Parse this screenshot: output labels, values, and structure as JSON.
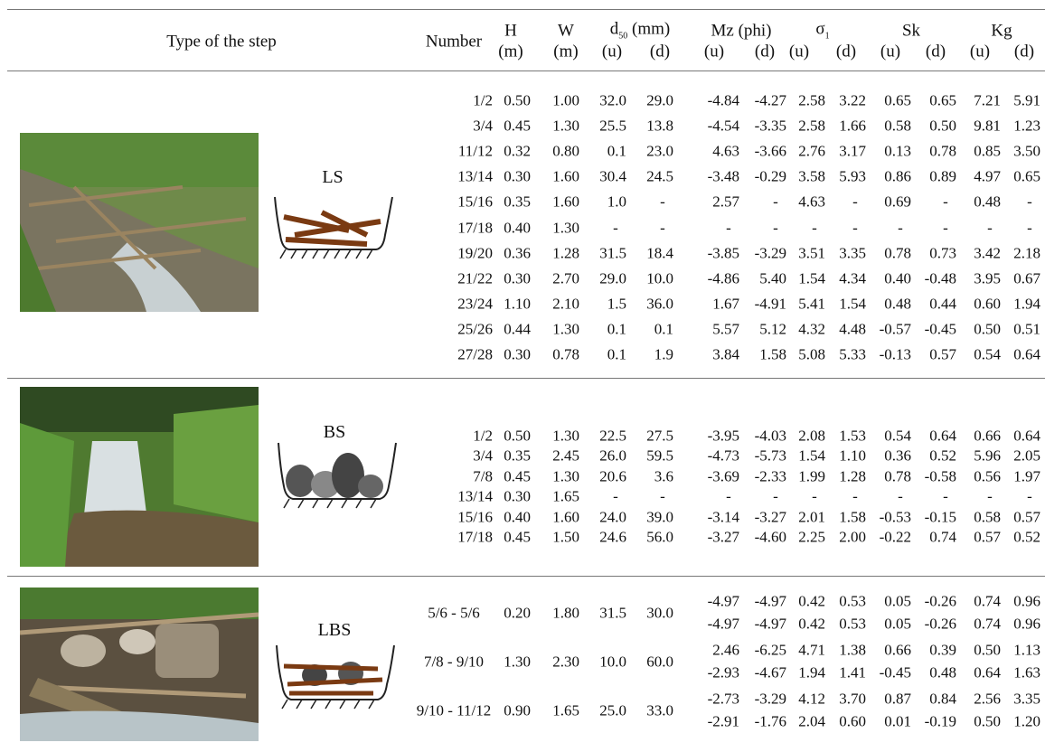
{
  "table": {
    "header": {
      "type": "Type of the step",
      "number": "Number",
      "columns": [
        {
          "name": "H",
          "unit": "(m)"
        },
        {
          "name": "W",
          "unit": "(m)"
        }
      ],
      "groups": [
        {
          "name": "d",
          "sub": "50",
          "unit": " (mm)",
          "u": "(u)",
          "d": "(d)"
        },
        {
          "name": "Mz (phi)",
          "u": "(u)",
          "d": "(d)"
        },
        {
          "name": "σ",
          "sub": "1",
          "u": "(u)",
          "d": "(d)"
        },
        {
          "name": "Sk",
          "u": "(u)",
          "d": "(d)"
        },
        {
          "name": "Kg",
          "u": "(u)",
          "d": "(d)"
        }
      ]
    },
    "groups": [
      {
        "label": "LS",
        "rows": [
          [
            "1/2",
            "0.50",
            "1.00",
            "32.0",
            "29.0",
            "-4.84",
            "-4.27",
            "2.58",
            "3.22",
            "0.65",
            "0.65",
            "7.21",
            "5.91"
          ],
          [
            "3/4",
            "0.45",
            "1.30",
            "25.5",
            "13.8",
            "-4.54",
            "-3.35",
            "2.58",
            "1.66",
            "0.58",
            "0.50",
            "9.81",
            "1.23"
          ],
          [
            "11/12",
            "0.32",
            "0.80",
            "0.1",
            "23.0",
            "4.63",
            "-3.66",
            "2.76",
            "3.17",
            "0.13",
            "0.78",
            "0.85",
            "3.50"
          ],
          [
            "13/14",
            "0.30",
            "1.60",
            "30.4",
            "24.5",
            "-3.48",
            "-0.29",
            "3.58",
            "5.93",
            "0.86",
            "0.89",
            "4.97",
            "0.65"
          ],
          [
            "15/16",
            "0.35",
            "1.60",
            "1.0",
            "-",
            "2.57",
            "-",
            "4.63",
            "-",
            "0.69",
            "-",
            "0.48",
            "-"
          ],
          [
            "17/18",
            "0.40",
            "1.30",
            "-",
            "-",
            "-",
            "-",
            "-",
            "-",
            "-",
            "-",
            "-",
            "-"
          ],
          [
            "19/20",
            "0.36",
            "1.28",
            "31.5",
            "18.4",
            "-3.85",
            "-3.29",
            "3.51",
            "3.35",
            "0.78",
            "0.73",
            "3.42",
            "2.18"
          ],
          [
            "21/22",
            "0.30",
            "2.70",
            "29.0",
            "10.0",
            "-4.86",
            "5.40",
            "1.54",
            "4.34",
            "0.40",
            "-0.48",
            "3.95",
            "0.67"
          ],
          [
            "23/24",
            "1.10",
            "2.10",
            "1.5",
            "36.0",
            "1.67",
            "-4.91",
            "5.41",
            "1.54",
            "0.48",
            "0.44",
            "0.60",
            "1.94"
          ],
          [
            "25/26",
            "0.44",
            "1.30",
            "0.1",
            "0.1",
            "5.57",
            "5.12",
            "4.32",
            "4.48",
            "-0.57",
            "-0.45",
            "0.50",
            "0.51"
          ],
          [
            "27/28",
            "0.30",
            "0.78",
            "0.1",
            "1.9",
            "3.84",
            "1.58",
            "5.08",
            "5.33",
            "-0.13",
            "0.57",
            "0.54",
            "0.64"
          ]
        ]
      },
      {
        "label": "BS",
        "rows": [
          [
            "1/2",
            "0.50",
            "1.30",
            "22.5",
            "27.5",
            "-3.95",
            "-4.03",
            "2.08",
            "1.53",
            "0.54",
            "0.64",
            "0.66",
            "0.64"
          ],
          [
            "3/4",
            "0.35",
            "2.45",
            "26.0",
            "59.5",
            "-4.73",
            "-5.73",
            "1.54",
            "1.10",
            "0.36",
            "0.52",
            "5.96",
            "2.05"
          ],
          [
            "7/8",
            "0.45",
            "1.30",
            "20.6",
            "3.6",
            "-3.69",
            "-2.33",
            "1.99",
            "1.28",
            "0.78",
            "-0.58",
            "0.56",
            "1.97"
          ],
          [
            "13/14",
            "0.30",
            "1.65",
            "-",
            "-",
            "-",
            "-",
            "-",
            "-",
            "-",
            "-",
            "-",
            "-"
          ],
          [
            "15/16",
            "0.40",
            "1.60",
            "24.0",
            "39.0",
            "-3.14",
            "-3.27",
            "2.01",
            "1.58",
            "-0.53",
            "-0.15",
            "0.58",
            "0.57"
          ],
          [
            "17/18",
            "0.45",
            "1.50",
            "24.6",
            "56.0",
            "-3.27",
            "-4.60",
            "2.25",
            "2.00",
            "-0.22",
            "0.74",
            "0.57",
            "0.52"
          ]
        ]
      },
      {
        "label": "LBS",
        "rows": [
          {
            "cells": [
              "5/6 - 5/6",
              "0.20",
              "1.80",
              "31.5",
              "30.0"
            ],
            "subrows": [
              [
                "-4.97",
                "-4.97",
                "0.42",
                "0.53",
                "0.05",
                "-0.26",
                "0.74",
                "0.96"
              ],
              [
                "-4.97",
                "-4.97",
                "0.42",
                "0.53",
                "0.05",
                "-0.26",
                "0.74",
                "0.96"
              ]
            ]
          },
          {
            "cells": [
              "7/8 - 9/10",
              "1.30",
              "2.30",
              "10.0",
              "60.0"
            ],
            "subrows": [
              [
                "2.46",
                "-6.25",
                "4.71",
                "1.38",
                "0.66",
                "0.39",
                "0.50",
                "1.13"
              ],
              [
                "-2.93",
                "-4.67",
                "1.94",
                "1.41",
                "-0.45",
                "0.48",
                "0.64",
                "1.63"
              ]
            ]
          },
          {
            "cells": [
              "9/10 - 11/12",
              "0.90",
              "1.65",
              "25.0",
              "33.0"
            ],
            "subrows": [
              [
                "-2.73",
                "-3.29",
                "4.12",
                "3.70",
                "0.87",
                "0.84",
                "2.56",
                "3.35"
              ],
              [
                "-2.91",
                "-1.76",
                "2.04",
                "0.60",
                "0.01",
                "-0.19",
                "0.50",
                "1.20"
              ]
            ]
          }
        ]
      }
    ]
  }
}
